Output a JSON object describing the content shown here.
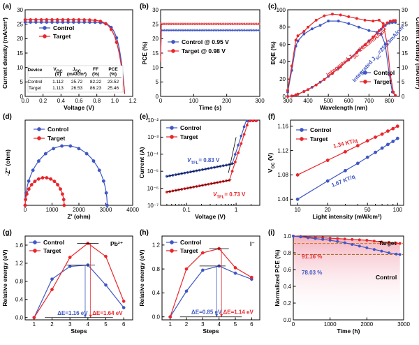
{
  "colors": {
    "control": "#3f57c4",
    "target": "#e8262b",
    "orange": "#c47a0e",
    "brown": "#a85f10"
  },
  "chart_data": [
    {
      "panel": "(a)",
      "type": "line",
      "xlabel": "Voltage (V)",
      "ylabel": "Current density (mA/cm²)",
      "xlim": [
        0,
        1.2
      ],
      "ylim": [
        0,
        30
      ],
      "xticks": [
        "0.0",
        "0.2",
        "0.4",
        "0.6",
        "0.8",
        "1.0",
        "1.2"
      ],
      "yticks": [
        "0",
        "5",
        "10",
        "15",
        "20",
        "25",
        "30"
      ],
      "series": [
        {
          "name": "Control",
          "voc": 1.112,
          "jsc": 25.72
        },
        {
          "name": "Target",
          "voc": 1.113,
          "jsc": 26.53
        }
      ],
      "table": {
        "headers": [
          "Device",
          "V_OC (V)",
          "J_SC (mA/cm²)",
          "FF (%)",
          "PCE (%)"
        ],
        "rows": [
          [
            "Control",
            "1.112",
            "25.72",
            "82.22",
            "23.52"
          ],
          [
            "Target",
            "1.113",
            "26.53",
            "86.23",
            "25.46"
          ]
        ]
      }
    },
    {
      "panel": "(b)",
      "type": "line",
      "xlabel": "Time (s)",
      "ylabel": "PCE (%)",
      "xlim": [
        0,
        300
      ],
      "ylim": [
        0,
        30
      ],
      "xticks": [
        "0",
        "100",
        "200",
        "300"
      ],
      "yticks": [
        "0",
        "5",
        "10",
        "15",
        "20",
        "25",
        "30"
      ],
      "series": [
        {
          "name": "Control @ 0.95 V",
          "value": 22.9
        },
        {
          "name": "Target  @ 0.98 V",
          "value": 25.1
        }
      ]
    },
    {
      "panel": "(c)",
      "type": "line",
      "xlabel": "Wavelength (nm)",
      "ylabel": "EQE (%)",
      "ylabel2": "Current Density (mA/cm²)",
      "xlim": [
        300,
        850
      ],
      "ylim": [
        0,
        100
      ],
      "ylim2": [
        0,
        30
      ],
      "xticks": [
        "300",
        "400",
        "500",
        "600",
        "700",
        "800"
      ],
      "yticks": [
        "0",
        "20",
        "40",
        "60",
        "80",
        "100"
      ],
      "yticks2": [
        "0",
        "5",
        "10",
        "15",
        "20",
        "25",
        "30"
      ],
      "annotations": [
        "Integrated J_SC=26.29mA/cm²",
        "Integrated J_SC=25.63mA/cm²"
      ],
      "series": [
        {
          "name": "Control",
          "eqe": [
            [
              300,
              5
            ],
            [
              320,
              30
            ],
            [
              340,
              58
            ],
            [
              350,
              64
            ],
            [
              380,
              72
            ],
            [
              420,
              78
            ],
            [
              460,
              82
            ],
            [
              500,
              87
            ],
            [
              550,
              87
            ],
            [
              600,
              84
            ],
            [
              650,
              80
            ],
            [
              700,
              76
            ],
            [
              740,
              74
            ],
            [
              760,
              72
            ],
            [
              780,
              60
            ],
            [
              800,
              25
            ],
            [
              815,
              5
            ],
            [
              830,
              1
            ]
          ],
          "integrated": 25.63
        },
        {
          "name": "Target",
          "eqe": [
            [
              300,
              7
            ],
            [
              320,
              35
            ],
            [
              340,
              65
            ],
            [
              350,
              70
            ],
            [
              380,
              75
            ],
            [
              400,
              80
            ],
            [
              440,
              88
            ],
            [
              480,
              93
            ],
            [
              520,
              95
            ],
            [
              560,
              94
            ],
            [
              600,
              92
            ],
            [
              640,
              90
            ],
            [
              680,
              88
            ],
            [
              720,
              87
            ],
            [
              750,
              88
            ],
            [
              770,
              84
            ],
            [
              790,
              60
            ],
            [
              805,
              25
            ],
            [
              820,
              5
            ],
            [
              830,
              1
            ]
          ],
          "integrated": 26.29
        }
      ]
    },
    {
      "panel": "(d)",
      "type": "scatter",
      "xlabel": "Z' (ohm)",
      "ylabel": "-Z'' (ohm)",
      "xlim": [
        0,
        4000
      ],
      "ylim": [
        0,
        2000
      ],
      "xticks": [
        "0",
        "1000",
        "2000",
        "3000",
        "4000"
      ],
      "series": [
        {
          "name": "Control",
          "arc": {
            "start": 0,
            "end": 3050,
            "peak": 1400
          }
        },
        {
          "name": "Target",
          "arc": {
            "start": 0,
            "end": 1450,
            "peak": 650
          }
        }
      ]
    },
    {
      "panel": "(e)",
      "type": "scatter",
      "xlabel": "Voltage (V)",
      "ylabel": "Current (A)",
      "xscale": "log",
      "yscale": "log",
      "xlim": [
        0.03,
        3
      ],
      "ylim": [
        1e-07,
        0.01
      ],
      "xticks": [
        "0.1",
        "1"
      ],
      "yticks": [
        "10⁻⁷",
        "10⁻⁶",
        "10⁻⁵",
        "10⁻⁴",
        "10⁻³",
        "10⁻²"
      ],
      "annotations": [
        "V_TFL= 0.83 V",
        "V_TFL= 0.73 V"
      ],
      "series": [
        {
          "name": "Control",
          "vtfl": 0.83
        },
        {
          "name": "Target",
          "vtfl": 0.73
        }
      ]
    },
    {
      "panel": "(f)",
      "type": "scatter",
      "xlabel": "Light intensity (mW/cm²)",
      "ylabel": "V_OC (V)",
      "xscale": "log",
      "xlim": [
        8.5,
        115
      ],
      "ylim": [
        1.03,
        1.17
      ],
      "xticks": [
        "10",
        "20",
        "30",
        "40",
        "50",
        "60",
        "70",
        "80",
        "90",
        "100"
      ],
      "xticks_labeled": [
        "10",
        "20",
        "50",
        "100"
      ],
      "yticks": [
        "1.04",
        "1.08",
        "1.12",
        "1.16"
      ],
      "annotations": [
        "1.34 KT/q",
        "1.67 KT/q"
      ],
      "series": [
        {
          "name": "Control",
          "x": [
            10,
            20,
            30,
            40,
            50,
            60,
            70,
            80,
            90,
            100
          ],
          "y": [
            1.04,
            1.07,
            1.087,
            1.099,
            1.109,
            1.117,
            1.124,
            1.13,
            1.135,
            1.14
          ]
        },
        {
          "name": "Target",
          "x": [
            10,
            20,
            30,
            40,
            50,
            60,
            70,
            80,
            90,
            100
          ],
          "y": [
            1.08,
            1.104,
            1.118,
            1.128,
            1.136,
            1.142,
            1.147,
            1.152,
            1.156,
            1.16
          ]
        }
      ]
    },
    {
      "panel": "(g)",
      "type": "line",
      "xlabel": "Steps",
      "ylabel": "Relative energy (eV)",
      "corner_label": "Pb²⁺",
      "xlim": [
        0.5,
        6.5
      ],
      "ylim": [
        -0.05,
        1.8
      ],
      "xticks": [
        "1",
        "2",
        "3",
        "4",
        "5",
        "6"
      ],
      "yticks": [
        "0.0",
        "0.4",
        "0.8",
        "1.2",
        "1.6"
      ],
      "annotations": [
        "ΔE=1.16 eV",
        "ΔE=1.64 eV"
      ],
      "series": [
        {
          "name": "Control",
          "x": [
            1,
            2,
            3,
            4,
            5,
            6
          ],
          "y": [
            0.0,
            0.85,
            1.13,
            1.16,
            0.72,
            0.22
          ]
        },
        {
          "name": "Target",
          "x": [
            1,
            2,
            3,
            4,
            5,
            6
          ],
          "y": [
            0.0,
            0.62,
            1.33,
            1.64,
            1.35,
            0.36
          ]
        }
      ]
    },
    {
      "panel": "(h)",
      "type": "line",
      "xlabel": "Steps",
      "ylabel": "Relative energy (eV)",
      "corner_label": "I⁻",
      "xlim": [
        0.5,
        6.5
      ],
      "ylim": [
        -0.05,
        1.35
      ],
      "xticks": [
        "1",
        "2",
        "3",
        "4",
        "5",
        "6"
      ],
      "yticks": [
        "0.0",
        "0.4",
        "0.8",
        "1.2"
      ],
      "annotations": [
        "ΔE=0.85 eV",
        "ΔE=1.14 eV"
      ],
      "series": [
        {
          "name": "Control",
          "x": [
            1,
            2,
            3,
            4,
            5,
            6
          ],
          "y": [
            0.0,
            0.43,
            0.78,
            0.85,
            0.73,
            0.63
          ]
        },
        {
          "name": "Target",
          "x": [
            1,
            2,
            3,
            4,
            5,
            6
          ],
          "y": [
            0.0,
            0.8,
            1.07,
            1.14,
            0.82,
            0.66
          ]
        }
      ]
    },
    {
      "panel": "(i)",
      "type": "line",
      "xlabel": "Time (h)",
      "ylabel": "Normalized PCE (%)",
      "xlim": [
        0,
        3000
      ],
      "ylim": [
        0,
        1.0
      ],
      "xticks": [
        "0",
        "1000",
        "2000",
        "3000"
      ],
      "yticks": [
        "0.0",
        "0.2",
        "0.4",
        "0.6",
        "0.8",
        "1.0"
      ],
      "annotations": [
        "91.16 %",
        "78.03 %"
      ],
      "series": [
        {
          "name": "Target",
          "x": [
            0,
            200,
            400,
            600,
            800,
            1000,
            1200,
            1400,
            1600,
            1800,
            2000,
            2200,
            2400,
            2600,
            2800,
            2900
          ],
          "y": [
            1.0,
            0.995,
            0.99,
            0.985,
            0.98,
            0.975,
            0.97,
            0.965,
            0.96,
            0.955,
            0.95,
            0.94,
            0.93,
            0.925,
            0.915,
            0.912
          ]
        },
        {
          "name": "Control",
          "x": [
            0,
            200,
            400,
            600,
            800,
            1000,
            1200,
            1400,
            1600,
            1800,
            2000,
            2200,
            2400,
            2600,
            2800,
            2900
          ],
          "y": [
            1.0,
            0.99,
            0.98,
            0.97,
            0.96,
            0.95,
            0.935,
            0.92,
            0.9,
            0.88,
            0.86,
            0.84,
            0.82,
            0.8,
            0.785,
            0.78
          ]
        }
      ]
    }
  ]
}
